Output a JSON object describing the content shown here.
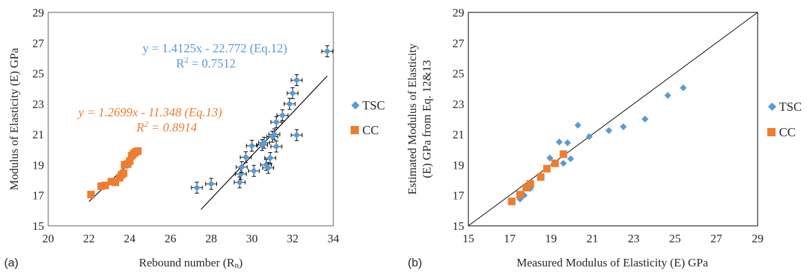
{
  "chart_data": [
    {
      "panel_label": "(a)",
      "type": "scatter",
      "xlabel": "Rebound number (R",
      "xlabel_sub": "n",
      "xlabel_close": ")",
      "ylabel": "Modulus of Elasticity (E) GPa",
      "xlim": [
        20,
        34
      ],
      "ylim": [
        15,
        29
      ],
      "x_ticks": [
        "20",
        "22",
        "24",
        "26",
        "28",
        "30",
        "32",
        "34"
      ],
      "y_ticks": [
        "15",
        "17",
        "19",
        "21",
        "23",
        "25",
        "27",
        "29"
      ],
      "series": [
        {
          "name": "TSC",
          "color": "#5b9bd5",
          "marker": "diamond",
          "error_bars": true,
          "points": [
            [
              27.3,
              17.5
            ],
            [
              28.0,
              17.75
            ],
            [
              29.4,
              17.85
            ],
            [
              29.45,
              18.4
            ],
            [
              29.5,
              18.85
            ],
            [
              29.7,
              19.5
            ],
            [
              30.0,
              20.25
            ],
            [
              30.1,
              18.6
            ],
            [
              30.5,
              20.3
            ],
            [
              30.6,
              20.45
            ],
            [
              30.7,
              19.0
            ],
            [
              30.8,
              18.8
            ],
            [
              30.9,
              19.45
            ],
            [
              31.0,
              20.85
            ],
            [
              31.1,
              21.0
            ],
            [
              31.2,
              21.8
            ],
            [
              31.2,
              20.2
            ],
            [
              31.5,
              22.25
            ],
            [
              31.85,
              23.0
            ],
            [
              32.0,
              23.7
            ],
            [
              32.2,
              24.55
            ],
            [
              32.2,
              20.95
            ],
            [
              33.7,
              26.45
            ]
          ]
        },
        {
          "name": "CC",
          "color": "#ed7d31",
          "marker": "square",
          "points": [
            [
              22.1,
              17.05
            ],
            [
              22.6,
              17.6
            ],
            [
              22.8,
              17.65
            ],
            [
              23.1,
              17.9
            ],
            [
              23.3,
              17.85
            ],
            [
              23.5,
              18.15
            ],
            [
              23.6,
              18.35
            ],
            [
              23.7,
              18.45
            ],
            [
              23.75,
              19.0
            ],
            [
              23.9,
              19.05
            ],
            [
              24.0,
              19.25
            ],
            [
              24.1,
              19.6
            ],
            [
              24.2,
              19.75
            ],
            [
              24.3,
              19.85
            ],
            [
              24.4,
              19.9
            ]
          ]
        }
      ],
      "trendlines": [
        {
          "series": "TSC",
          "x_range": [
            27.5,
            33.7
          ],
          "slope": 1.4125,
          "intercept": -22.772,
          "equation": "y = 1.4125x - 22.772 (Eq.12)",
          "r2_label": "R",
          "r2_sup": "2",
          "r2_value": " = 0.7512"
        },
        {
          "series": "CC",
          "x_range": [
            22.0,
            24.5
          ],
          "slope": 1.2699,
          "intercept": -11.348,
          "equation": "y = 1.2699x - 11.348 (Eq.13)",
          "r2_label": "R",
          "r2_sup": "2",
          "r2_value": " = 0.8914"
        }
      ],
      "legend": [
        "TSC",
        "CC"
      ],
      "legend_position": "right"
    },
    {
      "panel_label": "(b)",
      "type": "scatter",
      "xlabel": "Measured Modulus of Elasticity (E) GPa",
      "ylabel_line1": "Estimated Modulus of  Elasticity",
      "ylabel_line2": "(E) GPa from Eq. 12&13",
      "xlim": [
        15,
        29
      ],
      "ylim": [
        15,
        29
      ],
      "x_ticks": [
        "15",
        "17",
        "19",
        "21",
        "23",
        "25",
        "27",
        "29"
      ],
      "y_ticks": [
        "15",
        "17",
        "19",
        "21",
        "23",
        "25",
        "27",
        "29"
      ],
      "series": [
        {
          "name": "TSC",
          "color": "#5b9bd5",
          "marker": "diamond",
          "points": [
            [
              17.5,
              16.75
            ],
            [
              17.7,
              17.0
            ],
            [
              18.0,
              17.45
            ],
            [
              18.95,
              19.45
            ],
            [
              19.4,
              20.5
            ],
            [
              19.6,
              19.1
            ],
            [
              19.8,
              20.45
            ],
            [
              19.95,
              19.4
            ],
            [
              20.3,
              21.6
            ],
            [
              20.85,
              20.85
            ],
            [
              21.8,
              21.25
            ],
            [
              22.5,
              21.5
            ],
            [
              23.55,
              22.0
            ],
            [
              24.65,
              23.55
            ],
            [
              25.4,
              24.05
            ]
          ]
        },
        {
          "name": "CC",
          "color": "#ed7d31",
          "marker": "square",
          "points": [
            [
              17.1,
              16.6
            ],
            [
              17.5,
              17.05
            ],
            [
              17.8,
              17.5
            ],
            [
              18.0,
              17.75
            ],
            [
              18.5,
              18.2
            ],
            [
              18.8,
              18.75
            ],
            [
              19.2,
              19.1
            ],
            [
              19.6,
              19.7
            ]
          ]
        }
      ],
      "reference_line": "y = x",
      "legend": [
        "TSC",
        "CC"
      ],
      "legend_position": "right"
    }
  ]
}
